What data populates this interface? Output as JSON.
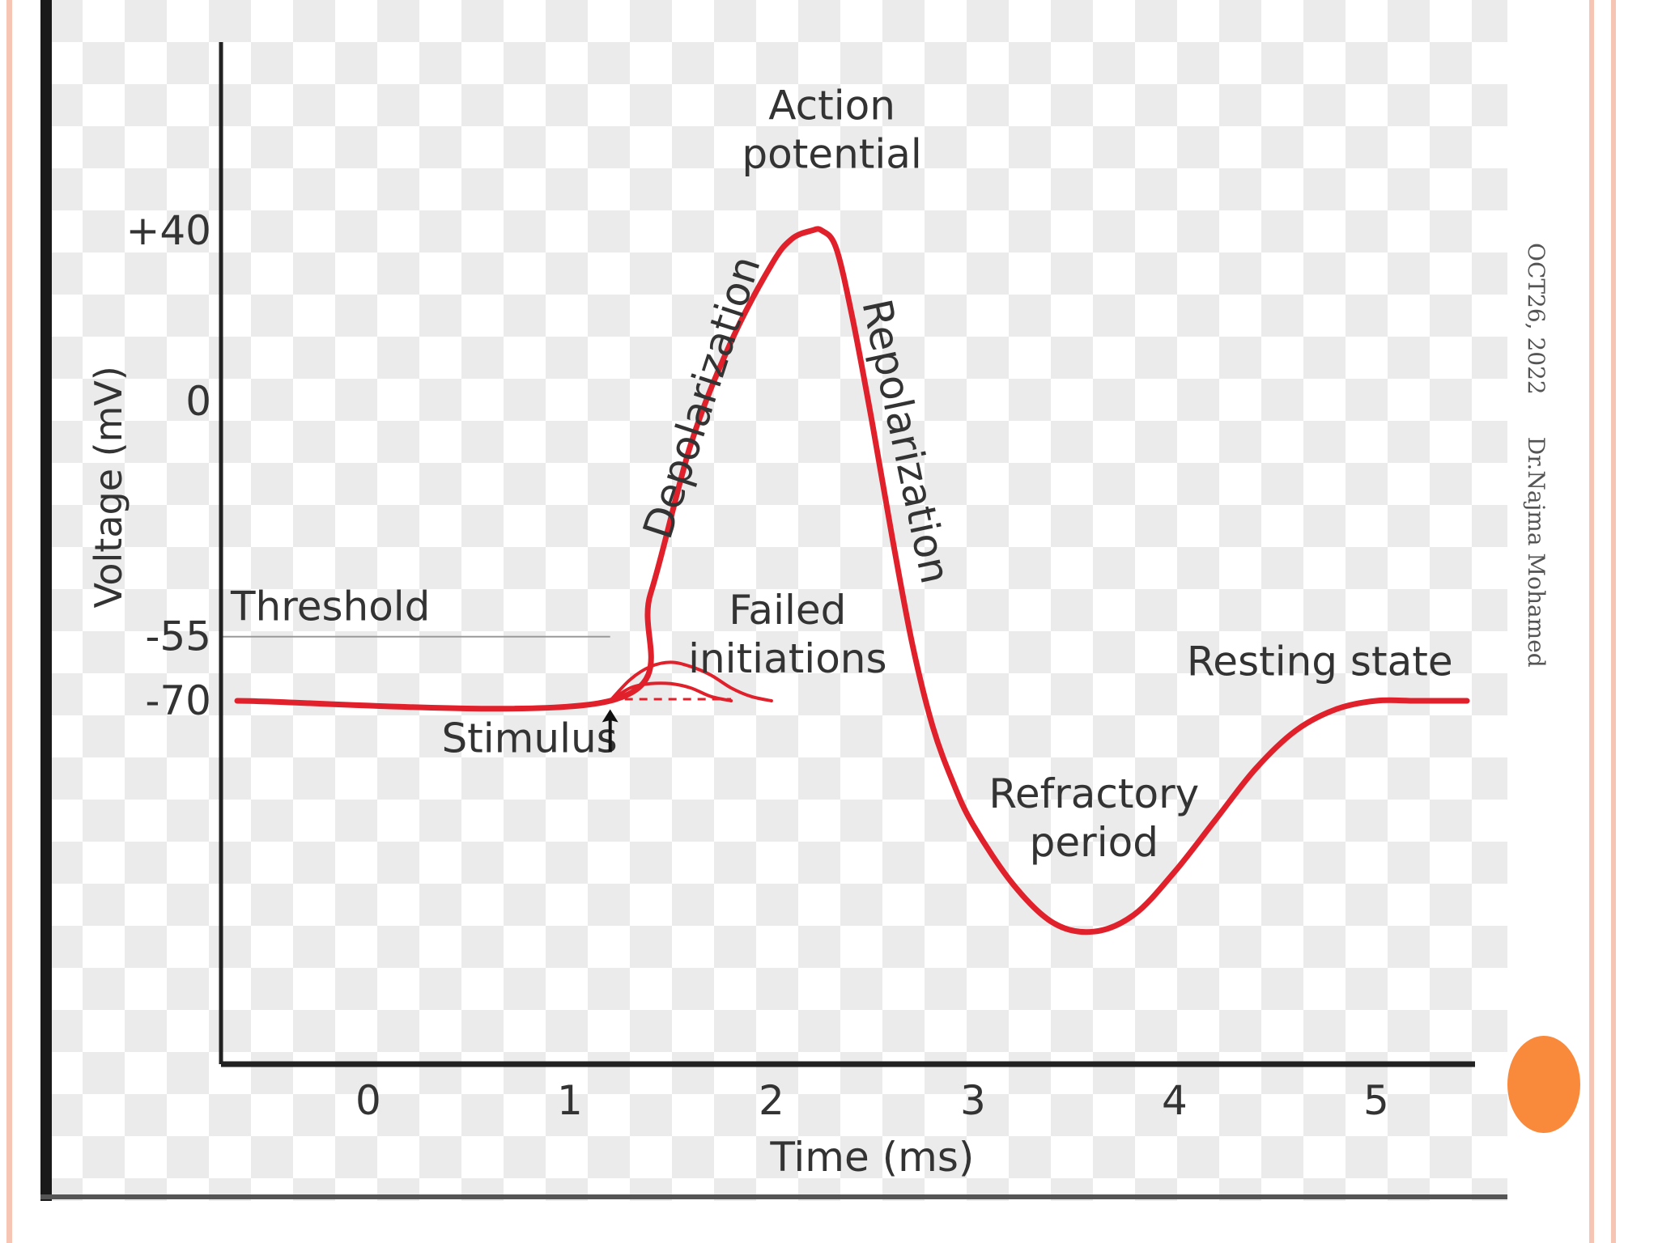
{
  "slide": {
    "date": "OCT26, 2022",
    "author": "Dr.Najma Mohamed",
    "colors": {
      "frame": "#f6c5b4",
      "accent": "#f98a3c"
    }
  },
  "chart_data": {
    "type": "line",
    "title": "",
    "xlabel": "Time (ms)",
    "ylabel": "Voltage (mV)",
    "xlim": [
      -0.65,
      5.45
    ],
    "ylim": [
      -155,
      75
    ],
    "x_ticks": [
      0,
      1,
      2,
      3,
      4,
      5
    ],
    "y_ticks": [
      {
        "value": 40,
        "label": "+40"
      },
      {
        "value": 0,
        "label": "0"
      },
      {
        "value": -55,
        "label": "-55"
      },
      {
        "value": -70,
        "label": "-70"
      }
    ],
    "threshold": {
      "label": "Threshold",
      "value": -55
    },
    "colors": {
      "trace": "#e0202a",
      "axis": "#222222",
      "text": "#333333",
      "threshold_line": "#9a9a9a"
    },
    "series": [
      {
        "name": "",
        "x": [
          -0.65,
          1.2,
          1.4,
          1.6,
          1.8,
          2.0,
          2.1,
          2.2,
          2.25,
          2.32,
          2.4,
          2.5,
          2.6,
          2.7,
          2.8,
          2.9,
          3.0,
          3.2,
          3.4,
          3.6,
          3.8,
          4.0,
          4.2,
          4.4,
          4.6,
          4.8,
          5.0,
          5.2,
          5.45
        ],
        "y": [
          -70,
          -70,
          -45,
          -10,
          14,
          32,
          38,
          40,
          40,
          36,
          20,
          -5,
          -32,
          -57,
          -76,
          -89,
          -99,
          -113,
          -122,
          -124,
          -120,
          -110,
          -98,
          -86,
          -77,
          -72,
          -70,
          -70,
          -70
        ]
      },
      {
        "name": "",
        "x": [
          1.2,
          1.3,
          1.4,
          1.5,
          1.6,
          1.7,
          1.8,
          1.9,
          2.0
        ],
        "y": [
          -70,
          -65,
          -62,
          -61,
          -62,
          -64,
          -67,
          -69,
          -70
        ]
      },
      {
        "name": "",
        "x": [
          1.2,
          1.3,
          1.4,
          1.5,
          1.6,
          1.7,
          1.8
        ],
        "y": [
          -70,
          -67,
          -66,
          -66,
          -67,
          -69,
          -70
        ]
      }
    ],
    "dashed_baseline": {
      "x": [
        1.2,
        1.8
      ],
      "y": -70
    },
    "annotations": [
      {
        "id": "action",
        "lines": [
          "Action",
          "potential"
        ],
        "x": 2.3,
        "y": 66
      },
      {
        "id": "depolarization",
        "lines": [
          "Depolarization"
        ],
        "x": 1.72,
        "y": 0,
        "rotate": -72
      },
      {
        "id": "repolarization",
        "lines": [
          "Repolarization"
        ],
        "x": 2.6,
        "y": -10,
        "rotate": 78
      },
      {
        "id": "failed",
        "lines": [
          "Failed",
          "initiations"
        ],
        "x": 2.08,
        "y": -52
      },
      {
        "id": "resting",
        "lines": [
          "Resting state"
        ],
        "x": 4.72,
        "y": -64
      },
      {
        "id": "stimulus",
        "lines": [
          "Stimulus"
        ],
        "x": 0.8,
        "y": -82
      },
      {
        "id": "refractory",
        "lines": [
          "Refractory",
          "period"
        ],
        "x": 3.6,
        "y": -95
      }
    ],
    "stimulus_arrow": {
      "x": 1.2,
      "y_from": -82,
      "y_to": -72
    }
  }
}
